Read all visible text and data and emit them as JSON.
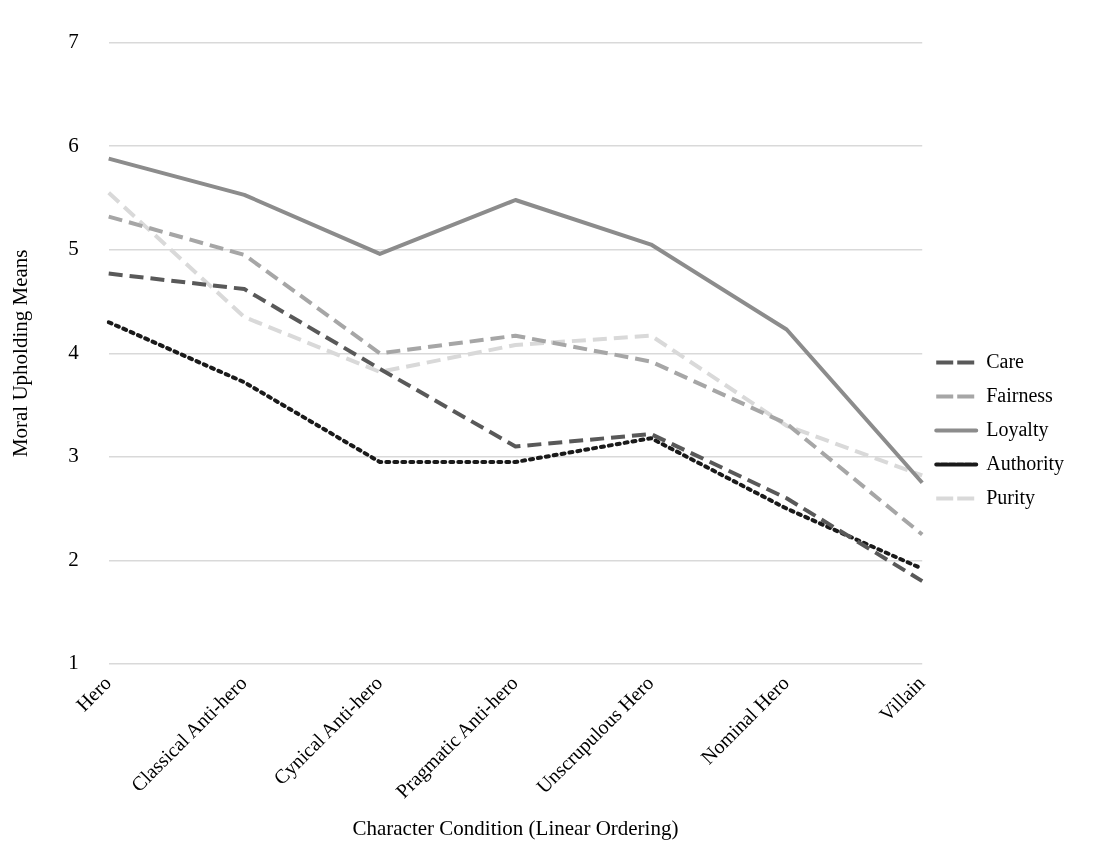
{
  "chart_data": {
    "type": "line",
    "xlabel": "Character Condition (Linear Ordering)",
    "ylabel": "Moral Upholding Means",
    "categories": [
      "Hero",
      "Classical Anti-hero",
      "Cynical Anti-hero",
      "Pragmatic Anti-hero",
      "Unscrupulous Hero",
      "Nominal Hero",
      "Villain"
    ],
    "series": [
      {
        "name": "Care",
        "color": "#595959",
        "line_style": "dashed",
        "values": [
          4.77,
          4.62,
          3.85,
          3.1,
          3.22,
          2.6,
          1.8
        ]
      },
      {
        "name": "Fairness",
        "color": "#a6a6a6",
        "line_style": "dashed",
        "values": [
          5.32,
          4.95,
          4.0,
          4.17,
          3.92,
          3.32,
          2.25
        ]
      },
      {
        "name": "Loyalty",
        "color": "#8c8c8c",
        "line_style": "solid",
        "values": [
          5.88,
          5.53,
          4.96,
          5.48,
          5.05,
          4.23,
          2.75
        ]
      },
      {
        "name": "Authority",
        "color": "#1a1a1a",
        "line_style": "dotted",
        "values": [
          4.3,
          3.72,
          2.95,
          2.95,
          3.18,
          2.5,
          1.92
        ]
      },
      {
        "name": "Purity",
        "color": "#d9d9d9",
        "line_style": "dashed",
        "values": [
          5.55,
          4.35,
          3.82,
          4.08,
          4.17,
          3.3,
          2.82
        ]
      }
    ],
    "ylim": [
      1,
      7
    ],
    "yticks": [
      1,
      2,
      3,
      4,
      5,
      6,
      7
    ],
    "grid": "y",
    "legend": "right",
    "marker": "none"
  }
}
